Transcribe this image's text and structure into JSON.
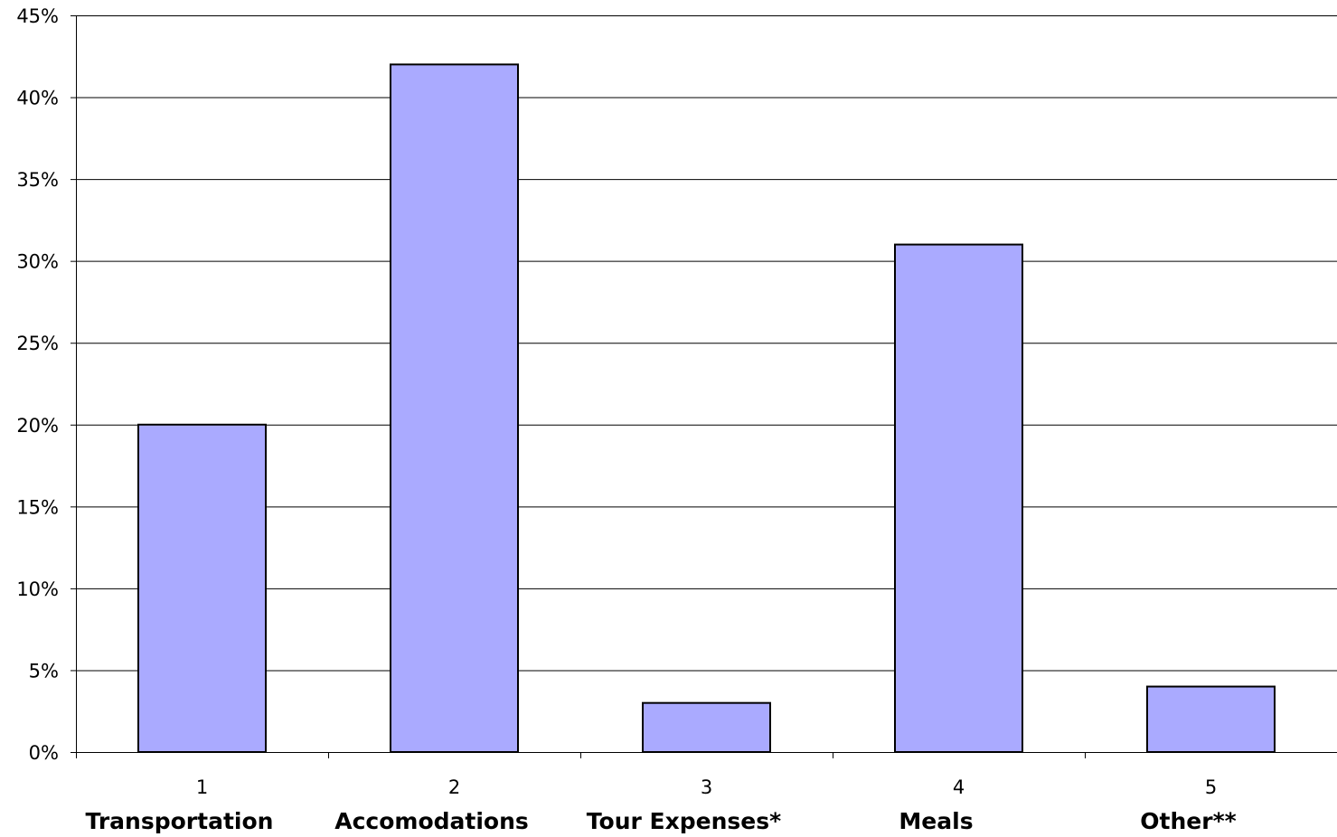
{
  "chart_data": {
    "type": "bar",
    "categories": [
      "1",
      "2",
      "3",
      "4",
      "5"
    ],
    "category_labels": [
      "Transportation",
      "Accomodations",
      "Tour Expenses*",
      "Meals",
      "Other**"
    ],
    "values": [
      20,
      42,
      3,
      31,
      4
    ],
    "value_unit": "%",
    "ylim": [
      0,
      45
    ],
    "yticks": [
      "0%",
      "5%",
      "10%",
      "15%",
      "20%",
      "25%",
      "30%",
      "35%",
      "40%",
      "45%"
    ],
    "grid": true,
    "legend": "none",
    "title": "",
    "xlabel": "",
    "ylabel": "",
    "colors": {
      "bar_fill": "#aaaaff",
      "bar_stroke": "#000000",
      "grid": "#000000"
    }
  }
}
